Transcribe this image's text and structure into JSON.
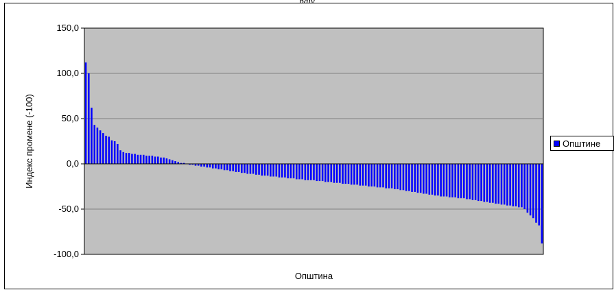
{
  "caption": "рају",
  "chart_data": {
    "type": "bar",
    "xlabel": "Општина",
    "ylabel": "Индекс промене (-100)",
    "ylim": [
      -100,
      150
    ],
    "yticks": [
      "150,0",
      "100,0",
      "50,0",
      "0,0",
      "-50,0",
      "-100,0"
    ],
    "grid": true,
    "legend_position": "right",
    "series": [
      {
        "name": "Општине",
        "color": "#0000ff",
        "values": [
          112,
          100,
          62,
          43,
          40,
          37,
          34,
          31,
          30,
          26,
          25,
          22,
          15,
          13,
          12,
          12,
          11,
          11,
          10,
          10,
          10,
          9,
          9,
          9,
          8,
          8,
          7,
          7,
          6,
          5,
          4,
          3,
          2,
          1,
          1,
          0,
          -1,
          -1,
          -2,
          -2,
          -3,
          -3,
          -4,
          -4,
          -5,
          -5,
          -6,
          -6,
          -7,
          -7,
          -8,
          -8,
          -9,
          -9,
          -10,
          -10,
          -11,
          -11,
          -11,
          -12,
          -12,
          -13,
          -13,
          -13,
          -14,
          -14,
          -14,
          -15,
          -15,
          -15,
          -16,
          -16,
          -16,
          -17,
          -17,
          -17,
          -18,
          -18,
          -18,
          -18,
          -19,
          -19,
          -19,
          -20,
          -20,
          -20,
          -21,
          -21,
          -21,
          -22,
          -22,
          -22,
          -23,
          -23,
          -23,
          -24,
          -24,
          -24,
          -25,
          -25,
          -25,
          -26,
          -26,
          -26,
          -27,
          -27,
          -27,
          -28,
          -28,
          -29,
          -29,
          -30,
          -30,
          -31,
          -31,
          -32,
          -32,
          -33,
          -33,
          -34,
          -34,
          -35,
          -35,
          -36,
          -36,
          -36,
          -37,
          -37,
          -37,
          -38,
          -38,
          -38,
          -39,
          -39,
          -40,
          -40,
          -41,
          -41,
          -42,
          -42,
          -43,
          -43,
          -44,
          -44,
          -45,
          -45,
          -46,
          -46,
          -47,
          -47,
          -48,
          -48,
          -50,
          -54,
          -57,
          -60,
          -65,
          -68,
          -88
        ]
      }
    ]
  },
  "legend": {
    "label": "Општине",
    "color": "#0000ff"
  },
  "colors": {
    "plot_background": "#c0c0c0",
    "grid": "#808080",
    "bar": "#0000ff"
  }
}
